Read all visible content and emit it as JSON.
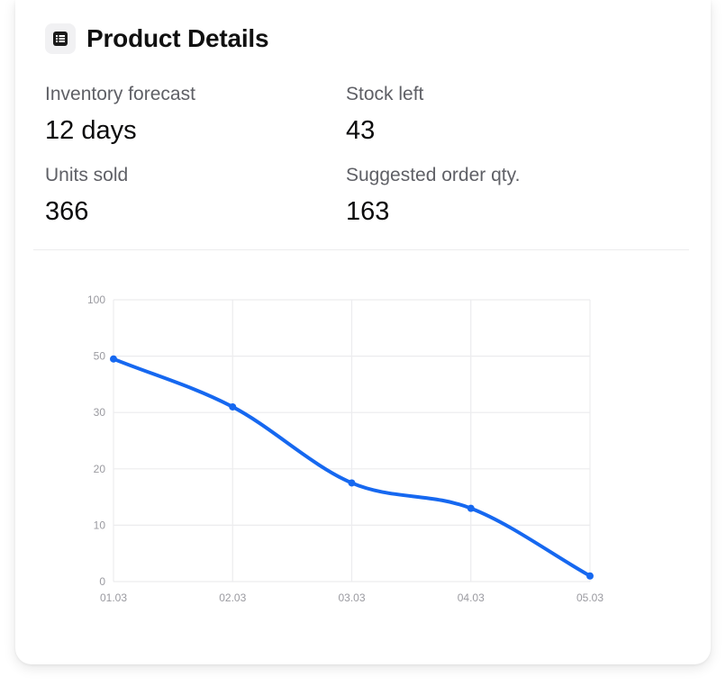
{
  "header": {
    "title": "Product Details",
    "icon": "list-icon"
  },
  "stats": [
    {
      "label": "Inventory forecast",
      "value": "12 days"
    },
    {
      "label": "Stock left",
      "value": "43"
    },
    {
      "label": "Units sold",
      "value": "366"
    },
    {
      "label": "Suggested order qty.",
      "value": "163"
    }
  ],
  "colors": {
    "line": "#1668f0",
    "grid": "#ececee",
    "tick_text": "#9a9aa0"
  },
  "chart_data": {
    "type": "line",
    "categories": [
      "01.03",
      "02.03",
      "03.03",
      "04.03",
      "05.03"
    ],
    "y_ticks": [
      "0",
      "10",
      "20",
      "30",
      "50",
      "100"
    ],
    "series": [
      {
        "values": [
          49,
          32,
          17.5,
          13,
          1
        ]
      }
    ],
    "ylim": [
      0,
      100
    ],
    "grid": true,
    "legend": "none"
  }
}
